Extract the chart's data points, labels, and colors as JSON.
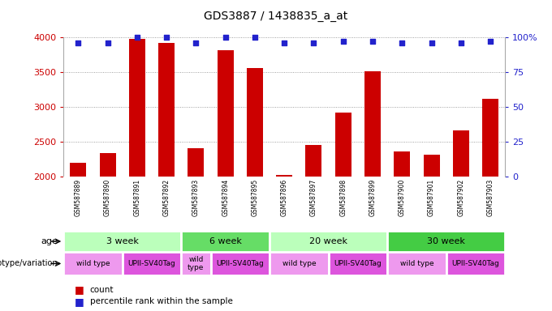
{
  "title": "GDS3887 / 1438835_a_at",
  "samples": [
    "GSM587889",
    "GSM587890",
    "GSM587891",
    "GSM587892",
    "GSM587893",
    "GSM587894",
    "GSM587895",
    "GSM587896",
    "GSM587897",
    "GSM587898",
    "GSM587899",
    "GSM587900",
    "GSM587901",
    "GSM587902",
    "GSM587903"
  ],
  "counts": [
    2190,
    2340,
    3980,
    3920,
    2400,
    3820,
    3560,
    2020,
    2450,
    2920,
    3510,
    2360,
    2310,
    2660,
    3110
  ],
  "pct_values": [
    96,
    96,
    100,
    100,
    96,
    100,
    100,
    96,
    96,
    97,
    97,
    96,
    96,
    96,
    97
  ],
  "ylim_left": [
    2000,
    4000
  ],
  "ylim_right": [
    0,
    100
  ],
  "yticks_left": [
    2000,
    2500,
    3000,
    3500,
    4000
  ],
  "yticks_right": [
    0,
    25,
    50,
    75,
    100
  ],
  "bar_color": "#cc0000",
  "dot_color": "#2222cc",
  "age_groups": [
    {
      "label": "3 week",
      "start": 0,
      "end": 4,
      "color": "#bbffbb"
    },
    {
      "label": "6 week",
      "start": 4,
      "end": 7,
      "color": "#66dd66"
    },
    {
      "label": "20 week",
      "start": 7,
      "end": 11,
      "color": "#bbffbb"
    },
    {
      "label": "30 week",
      "start": 11,
      "end": 15,
      "color": "#44cc44"
    }
  ],
  "genotype_groups": [
    {
      "label": "wild type",
      "start": 0,
      "end": 2,
      "color": "#ee99ee"
    },
    {
      "label": "UPII-SV40Tag",
      "start": 2,
      "end": 4,
      "color": "#dd55dd"
    },
    {
      "label": "wild\ntype",
      "start": 4,
      "end": 5,
      "color": "#ee99ee"
    },
    {
      "label": "UPII-SV40Tag",
      "start": 5,
      "end": 7,
      "color": "#dd55dd"
    },
    {
      "label": "wild type",
      "start": 7,
      "end": 9,
      "color": "#ee99ee"
    },
    {
      "label": "UPII-SV40Tag",
      "start": 9,
      "end": 11,
      "color": "#dd55dd"
    },
    {
      "label": "wild type",
      "start": 11,
      "end": 13,
      "color": "#ee99ee"
    },
    {
      "label": "UPII-SV40Tag",
      "start": 13,
      "end": 15,
      "color": "#dd55dd"
    }
  ],
  "bar_color_legend": "#cc0000",
  "dot_color_legend": "#2222cc",
  "background_color": "#ffffff",
  "grid_color": "#888888",
  "left_tick_color": "#cc0000",
  "right_tick_color": "#2222cc",
  "sample_box_color": "#d8d8d8"
}
